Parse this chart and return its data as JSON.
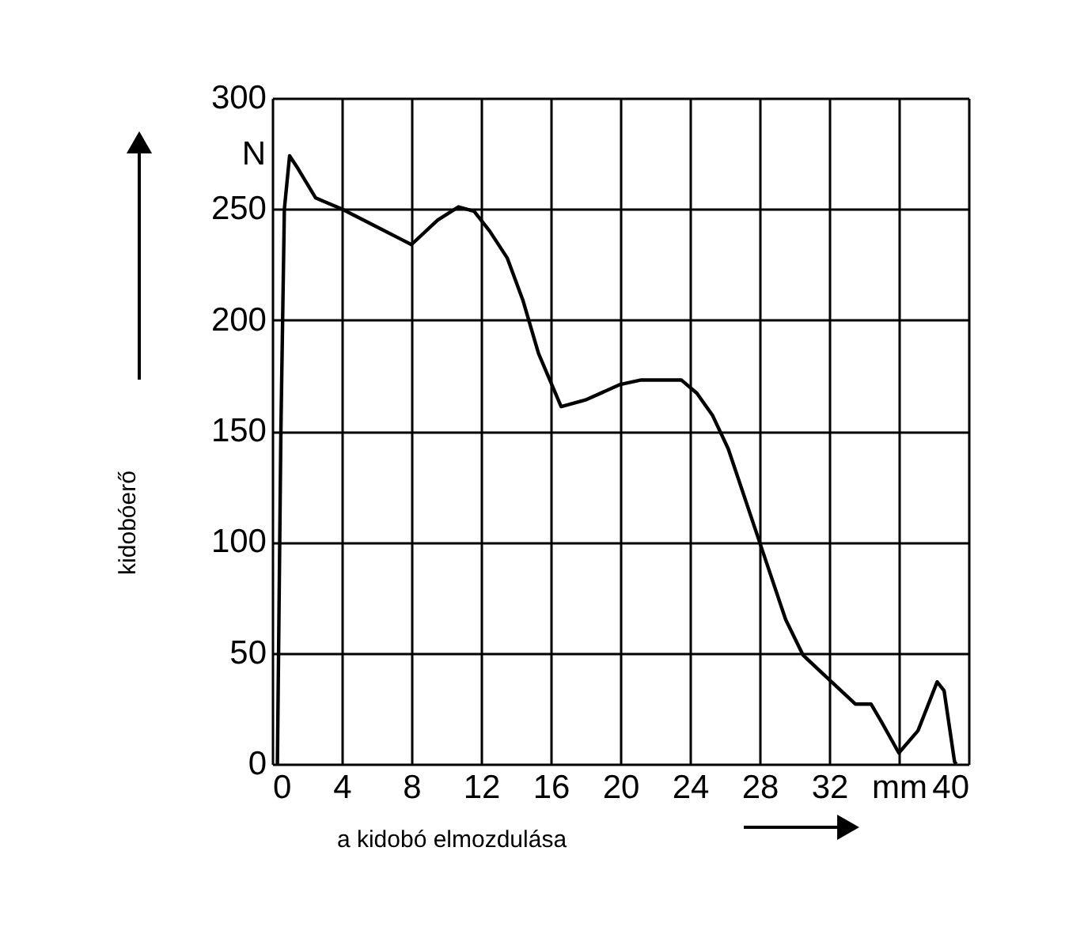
{
  "chart_data": {
    "type": "line",
    "xlabel": "a kidobó elmozdulása",
    "ylabel": "kidobóerő",
    "annotations": [
      "N"
    ],
    "x": [
      0.3,
      0.5,
      0.7,
      1.0,
      1.5,
      2.5,
      4,
      6,
      8,
      9.5,
      10.7,
      11.6,
      12.5,
      13.5,
      14.4,
      15.3,
      16.6,
      18,
      20,
      21.2,
      23.5,
      24.4,
      25.3,
      26.2,
      28,
      29.5,
      30.5,
      32,
      33.5,
      34.4,
      35,
      36,
      37.1,
      38.2,
      38.6,
      39.2,
      39.3
    ],
    "series": [
      {
        "color": "#000000",
        "values": [
          0,
          150,
          250,
          274,
          268,
          255,
          250,
          242,
          234,
          245,
          251,
          249,
          240,
          228,
          209,
          185,
          161,
          164,
          171,
          173,
          173,
          167,
          157,
          142,
          100,
          65,
          49,
          38,
          27,
          27,
          19,
          5,
          15,
          37,
          33,
          1,
          0
        ]
      }
    ],
    "xlim": [
      0,
      40
    ],
    "xticks": [
      0,
      4,
      8,
      12,
      16,
      20,
      24,
      28,
      32,
      {
        "value": 36,
        "label": "mm"
      },
      40
    ],
    "ylim": [
      0,
      300
    ],
    "yticks": [
      0,
      50,
      100,
      150,
      200,
      250,
      300
    ],
    "grid": true,
    "marker": "none",
    "line_style": "solid"
  }
}
